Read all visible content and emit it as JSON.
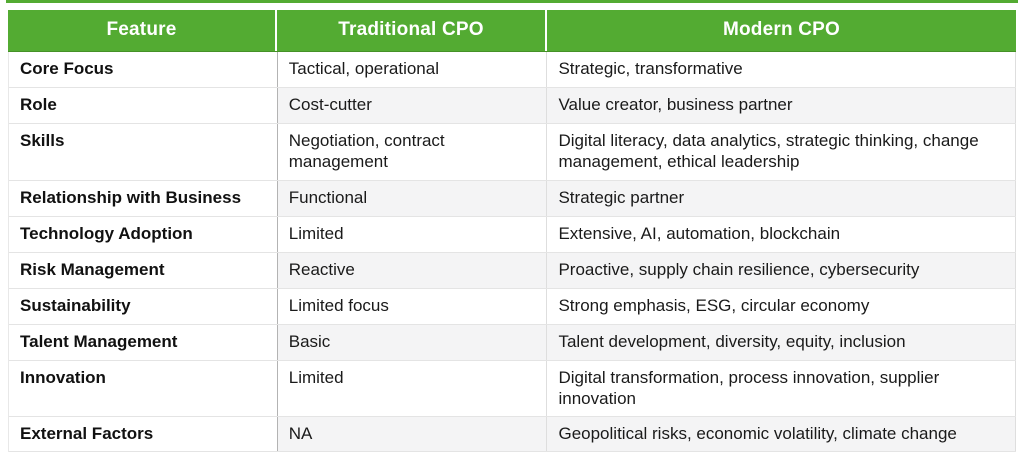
{
  "table": {
    "accent_color": "#53ab32",
    "stripe_color": "#f4f4f5",
    "header": {
      "bg_color": "#53ab32",
      "text_color": "#ffffff",
      "columns": [
        "Feature",
        "Traditional CPO",
        "Modern CPO"
      ]
    },
    "rows": [
      {
        "feature": "Core Focus",
        "traditional": "Tactical, operational",
        "modern": "Strategic, transformative"
      },
      {
        "feature": "Role",
        "traditional": "Cost-cutter",
        "modern": "Value creator, business partner"
      },
      {
        "feature": "Skills",
        "traditional": "Negotiation, contract management",
        "modern": "Digital literacy, data analytics, strategic thinking, change management, ethical leadership"
      },
      {
        "feature": "Relationship with Business",
        "traditional": "Functional",
        "modern": "Strategic partner"
      },
      {
        "feature": "Technology Adoption",
        "traditional": "Limited",
        "modern": "Extensive, AI, automation, blockchain"
      },
      {
        "feature": "Risk Management",
        "traditional": "Reactive",
        "modern": "Proactive, supply chain resilience, cybersecurity"
      },
      {
        "feature": "Sustainability",
        "traditional": "Limited focus",
        "modern": "Strong emphasis, ESG, circular economy"
      },
      {
        "feature": "Talent Management",
        "traditional": "Basic",
        "modern": "Talent development, diversity, equity, inclusion"
      },
      {
        "feature": "Innovation",
        "traditional": "Limited",
        "modern": "Digital transformation, process innovation, supplier innovation"
      },
      {
        "feature": "External Factors",
        "traditional": "NA",
        "modern": "Geopolitical risks, economic volatility, climate change"
      }
    ]
  }
}
